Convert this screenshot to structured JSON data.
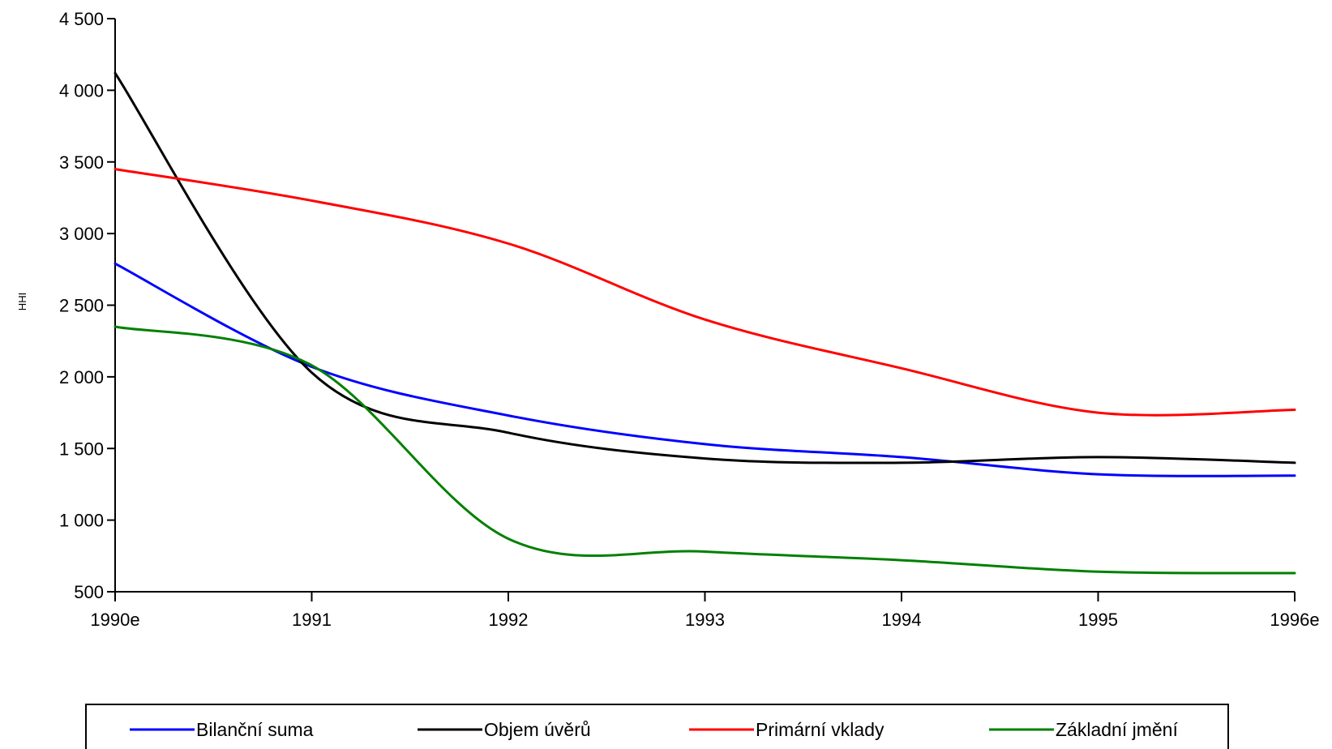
{
  "chart_data": {
    "type": "line",
    "title": "",
    "xlabel": "",
    "ylabel": "HHI",
    "x": [
      "1990e",
      "1991",
      "1992",
      "1993",
      "1994",
      "1995",
      "1996e"
    ],
    "y_ticks": [
      500,
      1000,
      1500,
      2000,
      2500,
      3000,
      3500,
      4000,
      4500
    ],
    "y_tick_labels": [
      "500",
      "1 000",
      "1 500",
      "2 000",
      "2 500",
      "3 000",
      "3 500",
      "4 000",
      "4 500"
    ],
    "ylim": [
      500,
      4500
    ],
    "grid": false,
    "legend_position": "bottom",
    "series": [
      {
        "name": "Bilanční suma",
        "color": "#0000ff",
        "values": [
          2790,
          2070,
          1730,
          1530,
          1440,
          1320,
          1310
        ]
      },
      {
        "name": "Objem úvěrů",
        "color": "#000000",
        "values": [
          4120,
          2030,
          1610,
          1430,
          1400,
          1440,
          1400
        ]
      },
      {
        "name": "Primární vklady",
        "color": "#ff0000",
        "values": [
          3450,
          3230,
          2930,
          2400,
          2060,
          1750,
          1770
        ]
      },
      {
        "name": "Základní jmění",
        "color": "#008000",
        "values": [
          2350,
          2080,
          870,
          780,
          720,
          640,
          630
        ]
      }
    ]
  }
}
